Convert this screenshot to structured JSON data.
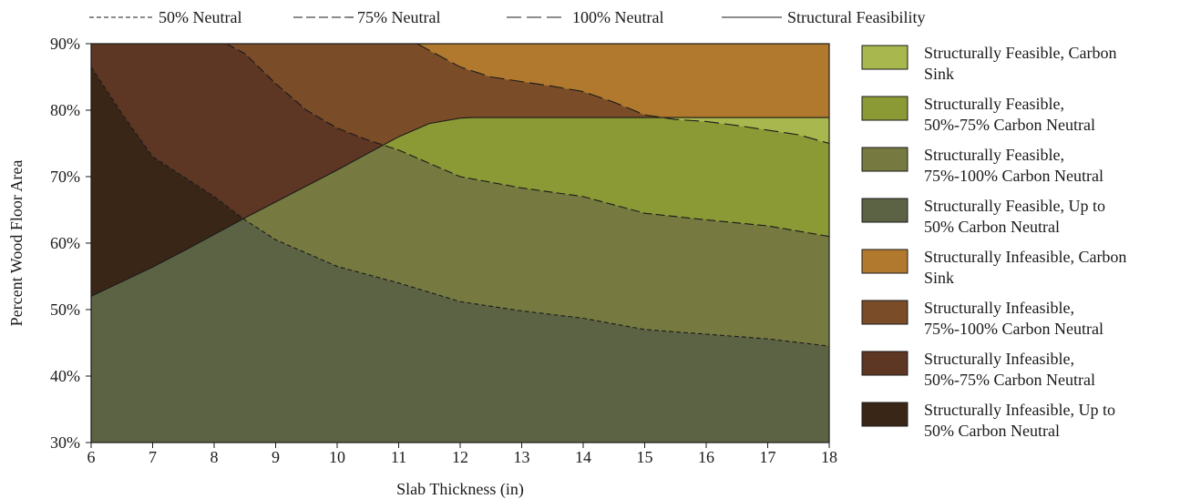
{
  "chart_data": {
    "type": "area",
    "xlabel": "Slab Thickness (in)",
    "ylabel": "Percent Wood Floor Area",
    "xlim": [
      6,
      18
    ],
    "ylim": [
      30,
      90
    ],
    "x_ticks": [
      "6",
      "7",
      "8",
      "9",
      "10",
      "11",
      "12",
      "13",
      "14",
      "15",
      "16",
      "17",
      "18"
    ],
    "y_ticks": [
      "30%",
      "40%",
      "50%",
      "60%",
      "70%",
      "80%",
      "90%"
    ],
    "line_legend": [
      {
        "label": "50% Neutral",
        "style": "short-dash"
      },
      {
        "label": "75% Neutral",
        "style": "long-dash"
      },
      {
        "label": "100% Neutral",
        "style": "dash-gap"
      },
      {
        "label": "Structural Feasibility",
        "style": "solid"
      }
    ],
    "curves": {
      "structural_feasibility": {
        "x": [
          6,
          6.5,
          7,
          7.5,
          8,
          8.5,
          9,
          9.5,
          10,
          10.5,
          11,
          11.5,
          12,
          12.2,
          18
        ],
        "y": [
          52,
          54.2,
          56.4,
          58.8,
          61.3,
          63.8,
          66.2,
          68.6,
          71,
          73.5,
          76,
          78,
          78.8,
          78.9,
          78.9
        ]
      },
      "neutral_50": {
        "x": [
          6,
          6.5,
          7,
          7.5,
          8,
          8.5,
          9,
          10,
          11,
          12,
          13,
          14,
          15,
          16,
          17,
          18
        ],
        "y": [
          86.5,
          79.5,
          73,
          70,
          67,
          63.5,
          60.5,
          56.5,
          54,
          51.2,
          49.8,
          48.7,
          47,
          46.3,
          45.6,
          44.5
        ]
      },
      "neutral_75": {
        "x": [
          8.2,
          8.5,
          9,
          9.5,
          10,
          10.5,
          11,
          11.5,
          12,
          13,
          14,
          15,
          16,
          17,
          18
        ],
        "y": [
          90,
          88.5,
          84,
          80,
          77.3,
          75.5,
          74,
          72,
          70,
          68.3,
          67,
          64.5,
          63.5,
          62.6,
          61
        ]
      },
      "neutral_100": {
        "x": [
          11.3,
          11.5,
          12,
          12.5,
          13,
          13.5,
          14,
          14.5,
          15,
          15.5,
          16,
          16.5,
          17,
          17.5,
          18
        ],
        "y": [
          90,
          89,
          86.5,
          85,
          84.3,
          83.6,
          82.8,
          81.2,
          79.3,
          78.6,
          78.3,
          77.7,
          77,
          76.3,
          75
        ]
      }
    },
    "regions": [
      {
        "label": "Structurally Feasible, Carbon Sink",
        "color": "#a9b84e"
      },
      {
        "label": "Structurally Feasible, 50%-75% Carbon Neutral",
        "color": "#8c9a36"
      },
      {
        "label": "Structurally Feasible, 75%-100% Carbon Neutral",
        "color": "#767a40"
      },
      {
        "label": "Structurally Feasible, Up to 50% Carbon Neutral",
        "color": "#5c6344"
      },
      {
        "label": "Structurally Infeasible, Carbon Sink",
        "color": "#b0792e"
      },
      {
        "label": "Structurally Infeasible, 75%-100% Carbon Neutral",
        "color": "#7a4c28"
      },
      {
        "label": "Structurally Infeasible, 50%-75% Carbon Neutral",
        "color": "#5e3624"
      },
      {
        "label": "Structurally Infeasible, Up to 50% Carbon Neutral",
        "color": "#3a2617"
      }
    ],
    "legend_lines": [
      [
        "Structurally Feasible, Carbon",
        "Sink"
      ],
      [
        "Structurally Feasible,",
        "50%-75% Carbon Neutral"
      ],
      [
        "Structurally Feasible,",
        "75%-100% Carbon Neutral"
      ],
      [
        "Structurally Feasible, Up to",
        "50% Carbon Neutral"
      ],
      [
        "Structurally Infeasible, Carbon",
        "Sink"
      ],
      [
        "Structurally Infeasible,",
        "75%-100% Carbon Neutral"
      ],
      [
        "Structurally Infeasible,",
        "50%-75% Carbon Neutral"
      ],
      [
        "Structurally Infeasible, Up to",
        "50% Carbon Neutral"
      ]
    ]
  }
}
